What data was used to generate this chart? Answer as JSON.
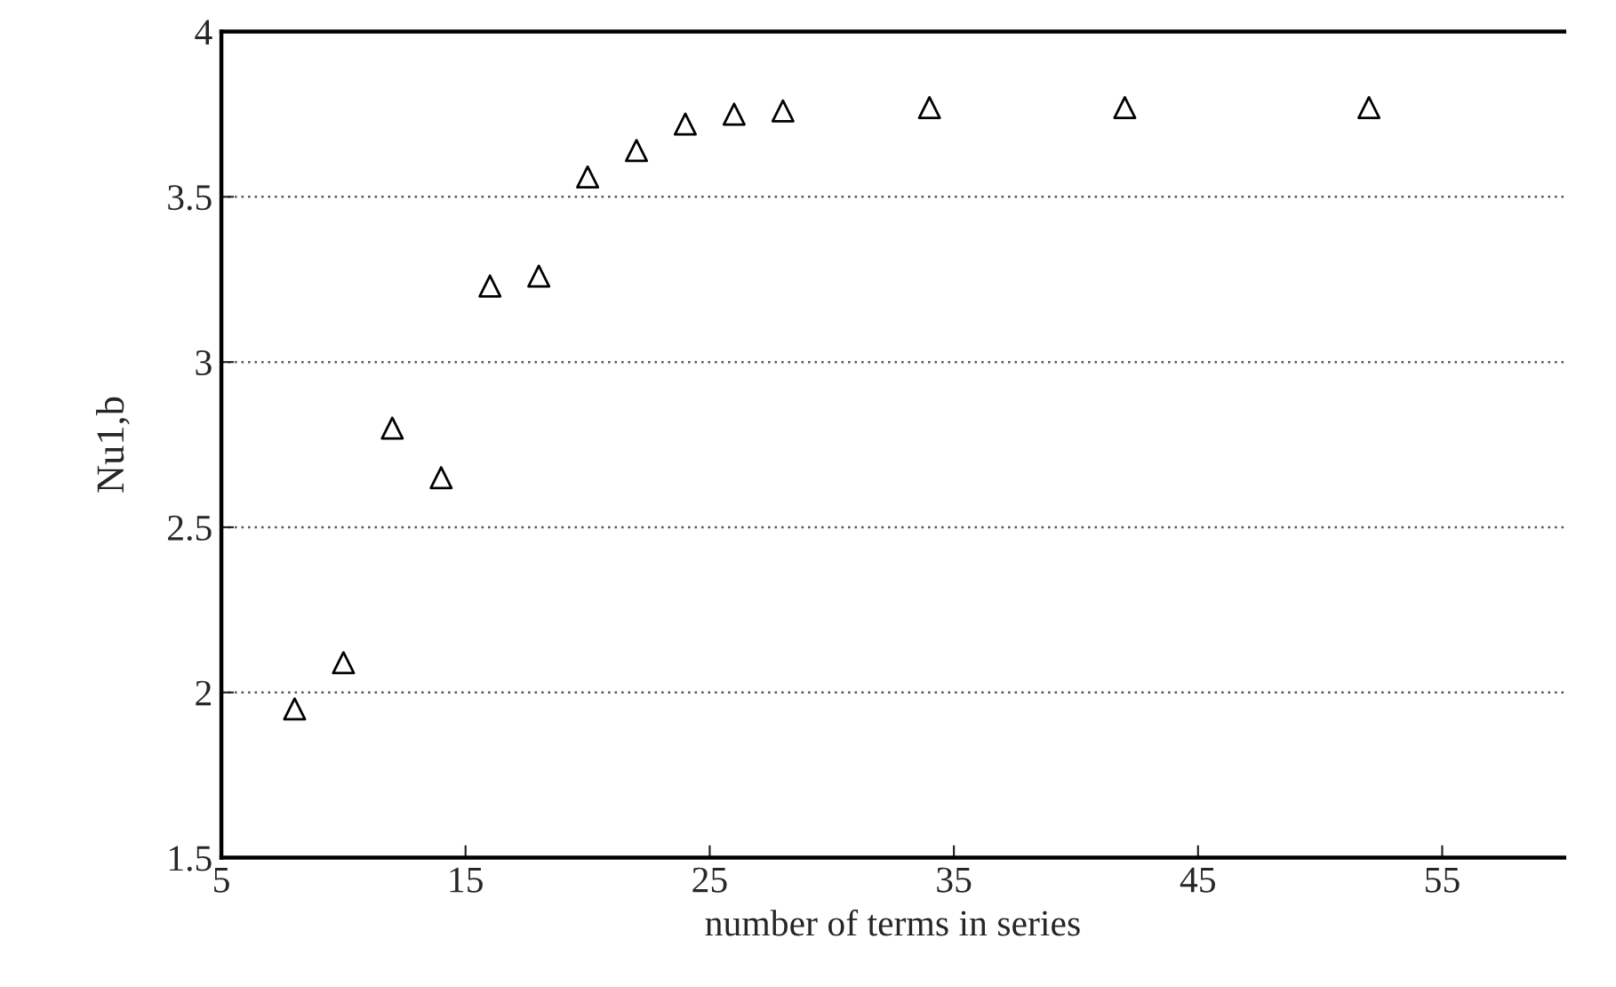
{
  "chart_data": {
    "type": "scatter",
    "xlabel": "number of terms in series",
    "ylabel": "Nu1,b",
    "x": [
      8,
      10,
      12,
      14,
      16,
      18,
      20,
      22,
      24,
      26,
      28,
      34,
      42,
      52
    ],
    "series": [
      {
        "color": "#000000",
        "values": [
          1.95,
          2.09,
          2.8,
          2.65,
          3.23,
          3.26,
          3.56,
          3.64,
          3.72,
          3.75,
          3.76,
          3.77,
          3.77,
          3.77
        ]
      }
    ],
    "xlim": [
      5,
      60
    ],
    "xticks": [
      5,
      15,
      25,
      35,
      45,
      55
    ],
    "ylim": [
      1.5,
      4
    ],
    "yticks": [
      1.5,
      2,
      2.5,
      3,
      3.5,
      4
    ],
    "grid": "y",
    "marker": "triangle"
  }
}
